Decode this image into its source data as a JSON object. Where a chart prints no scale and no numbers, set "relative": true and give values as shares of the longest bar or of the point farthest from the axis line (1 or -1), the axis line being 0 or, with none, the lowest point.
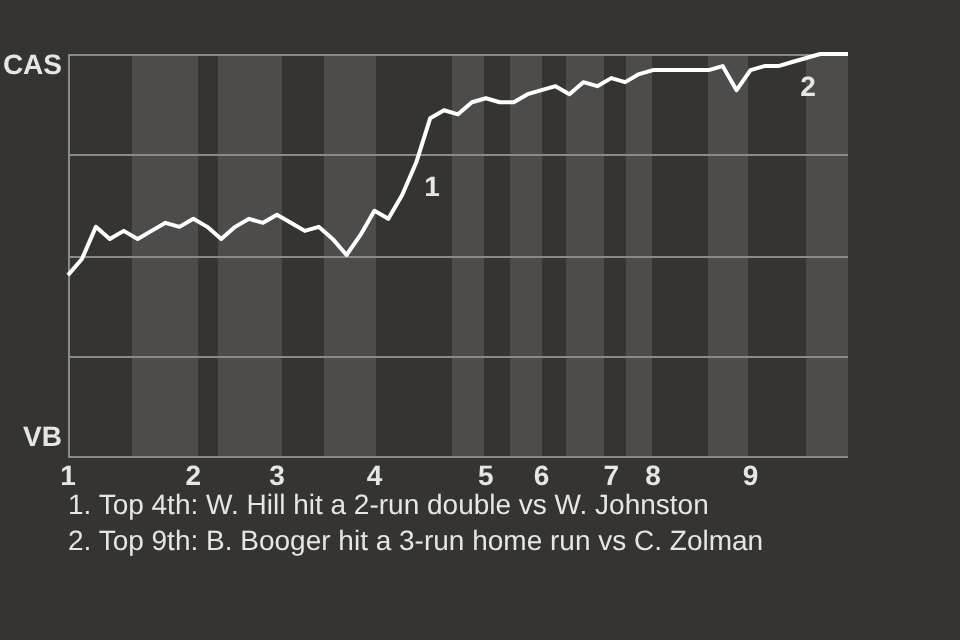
{
  "chart_data": {
    "type": "line",
    "relative": true,
    "categories": [
      "1",
      null,
      null,
      null,
      null,
      null,
      null,
      null,
      null,
      "2",
      null,
      null,
      null,
      null,
      null,
      "3",
      null,
      null,
      null,
      null,
      null,
      null,
      "4",
      null,
      null,
      null,
      null,
      null,
      null,
      null,
      "5",
      null,
      null,
      null,
      "6",
      null,
      null,
      null,
      null,
      "7",
      null,
      null,
      "8",
      null,
      null,
      null,
      null,
      null,
      null,
      "9",
      null,
      null,
      null,
      null,
      null,
      null,
      null
    ],
    "series": [
      {
        "color": "#ffffff",
        "values": [
          0.45,
          0.49,
          0.57,
          0.54,
          0.56,
          0.54,
          0.56,
          0.58,
          0.57,
          0.59,
          0.57,
          0.54,
          0.57,
          0.59,
          0.58,
          0.6,
          0.58,
          0.56,
          0.57,
          0.54,
          0.5,
          0.55,
          0.61,
          0.59,
          0.65,
          0.73,
          0.84,
          0.86,
          0.85,
          0.88,
          0.89,
          0.88,
          0.88,
          0.9,
          0.91,
          0.92,
          0.9,
          0.93,
          0.92,
          0.94,
          0.93,
          0.95,
          0.96,
          0.96,
          0.96,
          0.96,
          0.96,
          0.97,
          0.91,
          0.96,
          0.97,
          0.97,
          0.98,
          0.99,
          1,
          1,
          1
        ]
      }
    ],
    "annotations": [
      "CAS",
      "VB",
      "1",
      "2",
      "1. Top 4th: W. Hill hit a 2-run double vs W. Johnston",
      "2. Top 9th: B. Booger hit a 3-run home run vs C. Zolman"
    ],
    "grid": "y",
    "legend": false,
    "marker": "none",
    "line_style": "solid"
  }
}
